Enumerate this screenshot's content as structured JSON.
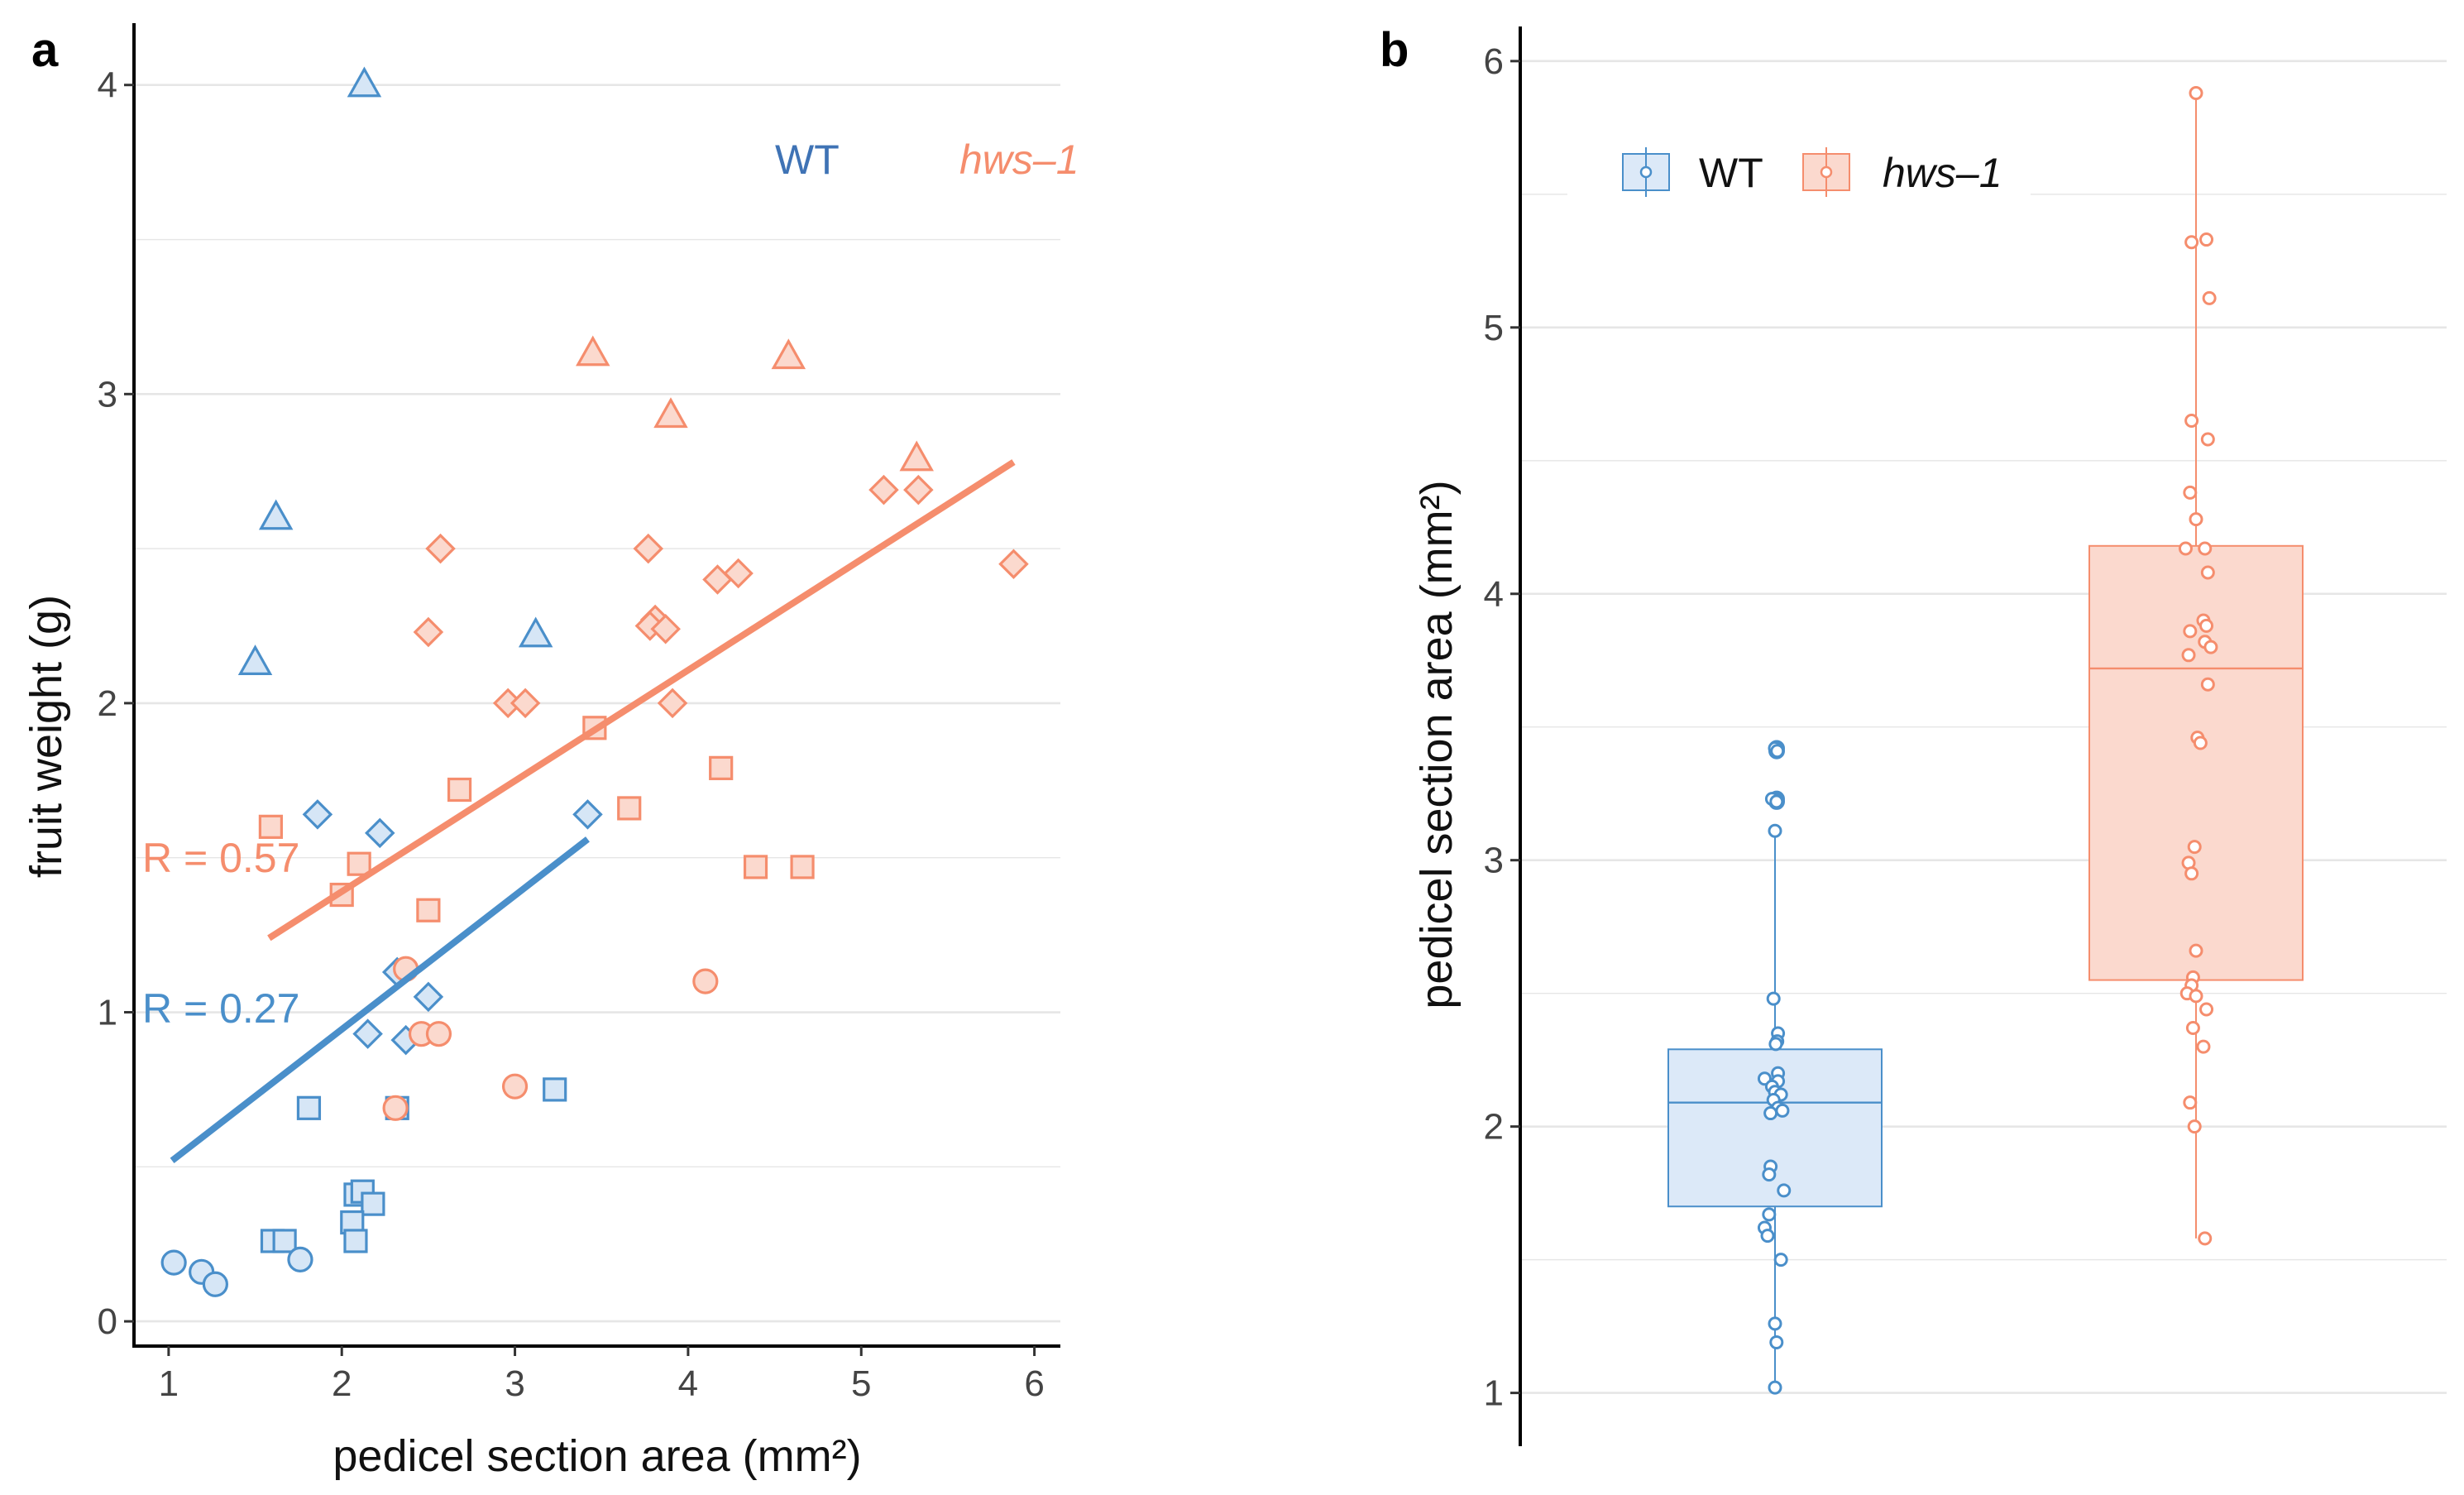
{
  "colors": {
    "wt": "#4a8fca",
    "wt_fill": "#d6e6f6",
    "hws": "#f58d6d",
    "hws_fill": "#fbd9ce",
    "grid": "#e6e6e6",
    "axis": "#000000"
  },
  "chart_data": [
    {
      "panel": "a",
      "type": "scatter",
      "xlabel": "pedicel section area (mm²)",
      "ylabel": "fruit weight (g)",
      "xlim": [
        0.8,
        6.15
      ],
      "ylim": [
        -0.08,
        4.2
      ],
      "xticks": [
        1,
        2,
        3,
        4,
        5,
        6
      ],
      "yticks": [
        0,
        1,
        2,
        3,
        4
      ],
      "grid": "horizontal",
      "legend": {
        "position": "top-right",
        "entries": [
          {
            "label": "WT",
            "italic": false
          },
          {
            "label": "hws–1",
            "italic": true
          }
        ]
      },
      "series": [
        {
          "name": "WT",
          "fit": {
            "x": [
              1.02,
              3.42
            ],
            "y": [
              0.52,
              1.56
            ]
          },
          "r_label": "R =  0.27",
          "points": [
            {
              "x": 2.13,
              "y": 4.0,
              "shape": "triangle"
            },
            {
              "x": 1.62,
              "y": 2.6,
              "shape": "triangle"
            },
            {
              "x": 1.5,
              "y": 2.13,
              "shape": "triangle"
            },
            {
              "x": 3.12,
              "y": 2.22,
              "shape": "triangle"
            },
            {
              "x": 1.86,
              "y": 1.64,
              "shape": "diamond"
            },
            {
              "x": 2.22,
              "y": 1.58,
              "shape": "diamond"
            },
            {
              "x": 3.42,
              "y": 1.64,
              "shape": "diamond"
            },
            {
              "x": 2.32,
              "y": 1.13,
              "shape": "diamond"
            },
            {
              "x": 2.5,
              "y": 1.05,
              "shape": "diamond"
            },
            {
              "x": 2.15,
              "y": 0.93,
              "shape": "diamond"
            },
            {
              "x": 2.37,
              "y": 0.91,
              "shape": "diamond"
            },
            {
              "x": 1.81,
              "y": 0.69,
              "shape": "square"
            },
            {
              "x": 2.32,
              "y": 0.69,
              "shape": "square"
            },
            {
              "x": 3.23,
              "y": 0.75,
              "shape": "square"
            },
            {
              "x": 2.08,
              "y": 0.41,
              "shape": "square"
            },
            {
              "x": 2.12,
              "y": 0.42,
              "shape": "square"
            },
            {
              "x": 2.18,
              "y": 0.38,
              "shape": "square"
            },
            {
              "x": 2.06,
              "y": 0.32,
              "shape": "square"
            },
            {
              "x": 1.6,
              "y": 0.26,
              "shape": "square"
            },
            {
              "x": 1.67,
              "y": 0.26,
              "shape": "square"
            },
            {
              "x": 2.08,
              "y": 0.26,
              "shape": "square"
            },
            {
              "x": 1.03,
              "y": 0.19,
              "shape": "circle"
            },
            {
              "x": 1.19,
              "y": 0.16,
              "shape": "circle"
            },
            {
              "x": 1.27,
              "y": 0.12,
              "shape": "circle"
            },
            {
              "x": 1.76,
              "y": 0.2,
              "shape": "circle"
            }
          ]
        },
        {
          "name": "hws–1",
          "fit": {
            "x": [
              1.58,
              5.88
            ],
            "y": [
              1.24,
              2.78
            ]
          },
          "r_label": "R =  0.57",
          "points": [
            {
              "x": 3.45,
              "y": 3.13,
              "shape": "triangle"
            },
            {
              "x": 4.58,
              "y": 3.12,
              "shape": "triangle"
            },
            {
              "x": 3.9,
              "y": 2.93,
              "shape": "triangle"
            },
            {
              "x": 5.32,
              "y": 2.79,
              "shape": "triangle"
            },
            {
              "x": 5.13,
              "y": 2.69,
              "shape": "diamond"
            },
            {
              "x": 5.33,
              "y": 2.69,
              "shape": "diamond"
            },
            {
              "x": 2.57,
              "y": 2.5,
              "shape": "diamond"
            },
            {
              "x": 3.77,
              "y": 2.5,
              "shape": "diamond"
            },
            {
              "x": 5.88,
              "y": 2.45,
              "shape": "diamond"
            },
            {
              "x": 4.29,
              "y": 2.42,
              "shape": "diamond"
            },
            {
              "x": 4.17,
              "y": 2.4,
              "shape": "diamond"
            },
            {
              "x": 3.81,
              "y": 2.27,
              "shape": "diamond"
            },
            {
              "x": 3.78,
              "y": 2.25,
              "shape": "diamond"
            },
            {
              "x": 3.87,
              "y": 2.24,
              "shape": "diamond"
            },
            {
              "x": 2.5,
              "y": 2.23,
              "shape": "diamond"
            },
            {
              "x": 2.96,
              "y": 2.0,
              "shape": "diamond"
            },
            {
              "x": 3.06,
              "y": 2.0,
              "shape": "diamond"
            },
            {
              "x": 3.91,
              "y": 2.0,
              "shape": "diamond"
            },
            {
              "x": 3.46,
              "y": 1.92,
              "shape": "square"
            },
            {
              "x": 4.19,
              "y": 1.79,
              "shape": "square"
            },
            {
              "x": 2.68,
              "y": 1.72,
              "shape": "square"
            },
            {
              "x": 3.66,
              "y": 1.66,
              "shape": "square"
            },
            {
              "x": 1.59,
              "y": 1.6,
              "shape": "square"
            },
            {
              "x": 2.1,
              "y": 1.48,
              "shape": "square"
            },
            {
              "x": 4.39,
              "y": 1.47,
              "shape": "square"
            },
            {
              "x": 4.66,
              "y": 1.47,
              "shape": "square"
            },
            {
              "x": 2.0,
              "y": 1.38,
              "shape": "square"
            },
            {
              "x": 2.5,
              "y": 1.33,
              "shape": "square"
            },
            {
              "x": 2.37,
              "y": 1.14,
              "shape": "circle"
            },
            {
              "x": 4.1,
              "y": 1.1,
              "shape": "circle"
            },
            {
              "x": 2.46,
              "y": 0.93,
              "shape": "circle"
            },
            {
              "x": 2.56,
              "y": 0.93,
              "shape": "circle"
            },
            {
              "x": 3.0,
              "y": 0.76,
              "shape": "circle"
            },
            {
              "x": 2.31,
              "y": 0.69,
              "shape": "circle"
            }
          ]
        }
      ]
    },
    {
      "panel": "b",
      "type": "box",
      "xlabel": "",
      "ylabel": "pedicel section area (mm²)",
      "ylim": [
        0.8,
        6.13
      ],
      "yticks": [
        1,
        2,
        3,
        4,
        5,
        6
      ],
      "grid": "horizontal",
      "legend": {
        "position": "top-left",
        "entries": [
          {
            "label": "WT",
            "italic": false
          },
          {
            "label": "hws–1",
            "italic": true
          }
        ]
      },
      "groups": [
        {
          "name": "WT",
          "whisker_low": 1.02,
          "q1": 1.7,
          "median": 2.09,
          "q3": 2.29,
          "whisker_high": 3.1,
          "outliers": [
            3.22,
            3.23,
            3.41,
            3.42
          ],
          "points": [
            {
              "dx": 0.0,
              "y": 3.42
            },
            {
              "dx": 0.015,
              "y": 3.41
            },
            {
              "dx": -0.02,
              "y": 3.23
            },
            {
              "dx": 0.01,
              "y": 3.22
            },
            {
              "dx": 0.0,
              "y": 3.11
            },
            {
              "dx": -0.01,
              "y": 2.48
            },
            {
              "dx": 0.02,
              "y": 2.35
            },
            {
              "dx": 0.015,
              "y": 2.32
            },
            {
              "dx": 0.005,
              "y": 2.31
            },
            {
              "dx": 0.02,
              "y": 2.2
            },
            {
              "dx": -0.07,
              "y": 2.18
            },
            {
              "dx": 0.02,
              "y": 2.17
            },
            {
              "dx": -0.02,
              "y": 2.15
            },
            {
              "dx": 0.0,
              "y": 2.13
            },
            {
              "dx": 0.04,
              "y": 2.12
            },
            {
              "dx": -0.01,
              "y": 2.1
            },
            {
              "dx": 0.02,
              "y": 2.07
            },
            {
              "dx": 0.05,
              "y": 2.06
            },
            {
              "dx": -0.03,
              "y": 2.05
            },
            {
              "dx": -0.03,
              "y": 1.85
            },
            {
              "dx": -0.04,
              "y": 1.82
            },
            {
              "dx": 0.06,
              "y": 1.76
            },
            {
              "dx": -0.04,
              "y": 1.67
            },
            {
              "dx": -0.07,
              "y": 1.62
            },
            {
              "dx": -0.05,
              "y": 1.59
            },
            {
              "dx": 0.04,
              "y": 1.5
            },
            {
              "dx": 0.0,
              "y": 1.26
            },
            {
              "dx": 0.01,
              "y": 1.19
            },
            {
              "dx": 0.0,
              "y": 1.02
            }
          ]
        },
        {
          "name": "hws–1",
          "whisker_low": 1.58,
          "q1": 2.55,
          "median": 3.72,
          "q3": 4.18,
          "whisker_high": 5.88,
          "outliers": [],
          "points": [
            {
              "dx": 0.0,
              "y": 5.88
            },
            {
              "dx": 0.07,
              "y": 5.33
            },
            {
              "dx": -0.03,
              "y": 5.32
            },
            {
              "dx": 0.09,
              "y": 5.11
            },
            {
              "dx": -0.03,
              "y": 4.65
            },
            {
              "dx": 0.08,
              "y": 4.58
            },
            {
              "dx": -0.04,
              "y": 4.38
            },
            {
              "dx": 0.0,
              "y": 4.28
            },
            {
              "dx": -0.07,
              "y": 4.17
            },
            {
              "dx": 0.06,
              "y": 4.17
            },
            {
              "dx": 0.08,
              "y": 4.08
            },
            {
              "dx": 0.05,
              "y": 3.9
            },
            {
              "dx": 0.07,
              "y": 3.88
            },
            {
              "dx": -0.04,
              "y": 3.86
            },
            {
              "dx": 0.06,
              "y": 3.82
            },
            {
              "dx": 0.1,
              "y": 3.8
            },
            {
              "dx": -0.05,
              "y": 3.77
            },
            {
              "dx": 0.08,
              "y": 3.66
            },
            {
              "dx": 0.01,
              "y": 3.46
            },
            {
              "dx": 0.03,
              "y": 3.44
            },
            {
              "dx": -0.01,
              "y": 3.05
            },
            {
              "dx": -0.05,
              "y": 2.99
            },
            {
              "dx": -0.03,
              "y": 2.95
            },
            {
              "dx": 0.0,
              "y": 2.66
            },
            {
              "dx": -0.02,
              "y": 2.56
            },
            {
              "dx": -0.03,
              "y": 2.53
            },
            {
              "dx": -0.06,
              "y": 2.5
            },
            {
              "dx": 0.0,
              "y": 2.49
            },
            {
              "dx": 0.07,
              "y": 2.44
            },
            {
              "dx": -0.02,
              "y": 2.37
            },
            {
              "dx": 0.05,
              "y": 2.3
            },
            {
              "dx": -0.04,
              "y": 2.09
            },
            {
              "dx": -0.01,
              "y": 2.0
            },
            {
              "dx": 0.06,
              "y": 1.58
            }
          ]
        }
      ]
    }
  ]
}
